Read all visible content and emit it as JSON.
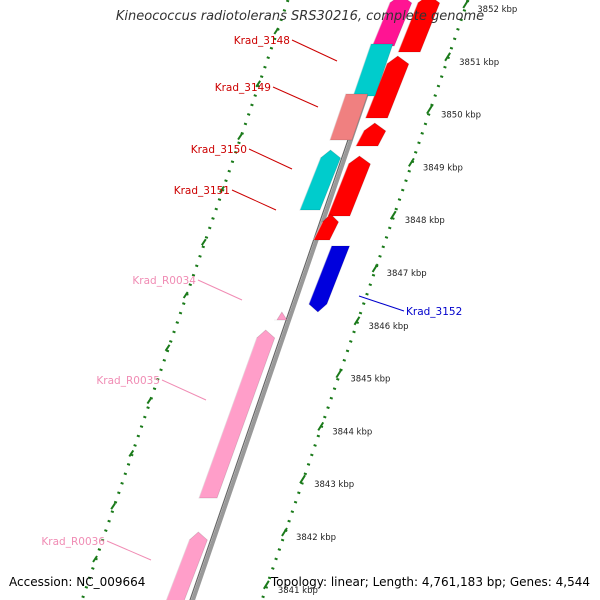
{
  "title": "Kineococcus radiotolerans SRS30216, complete genome",
  "footer": {
    "accession": "Accession: NC_009664",
    "summary": "Topology: linear; Length: 4,761,183 bp; Genes: 4,544"
  },
  "colors": {
    "backbone": "#999999",
    "tick": "#1a7a1a",
    "cds_forward": "#ff0000",
    "cds_reverse_a": "#00cccc",
    "cds_reverse_b": "#f08080",
    "cds_reverse_c": "#ff1493",
    "cds_blue": "#0000dd",
    "rrna": "#ff9ec9",
    "label_red": "#cc0000",
    "label_pink": "#f08cb4",
    "label_blue": "#0000cc"
  },
  "kbp_ticks": [
    {
      "label": "3852 kbp",
      "kbp": 3852
    },
    {
      "label": "3851 kbp",
      "kbp": 3851
    },
    {
      "label": "3850 kbp",
      "kbp": 3850
    },
    {
      "label": "3849 kbp",
      "kbp": 3849
    },
    {
      "label": "3848 kbp",
      "kbp": 3848
    },
    {
      "label": "3847 kbp",
      "kbp": 3847
    },
    {
      "label": "3846 kbp",
      "kbp": 3846
    },
    {
      "label": "3845 kbp",
      "kbp": 3845
    },
    {
      "label": "3844 kbp",
      "kbp": 3844
    },
    {
      "label": "3843 kbp",
      "kbp": 3843
    },
    {
      "label": "3842 kbp",
      "kbp": 3842
    },
    {
      "label": "3841 kbp",
      "kbp": 3841
    }
  ],
  "gene_labels": [
    {
      "label": "Krad_3148",
      "color": "#cc0000"
    },
    {
      "label": "Krad_3149",
      "color": "#cc0000"
    },
    {
      "label": "Krad_3150",
      "color": "#cc0000"
    },
    {
      "label": "Krad_3151",
      "color": "#cc0000"
    },
    {
      "label": "Krad_R0034",
      "color": "#f08cb4"
    },
    {
      "label": "Krad_3152",
      "color": "#0000cc"
    },
    {
      "label": "Krad_R0035",
      "color": "#f08cb4"
    },
    {
      "label": "Krad_R0036",
      "color": "#f08cb4"
    }
  ]
}
